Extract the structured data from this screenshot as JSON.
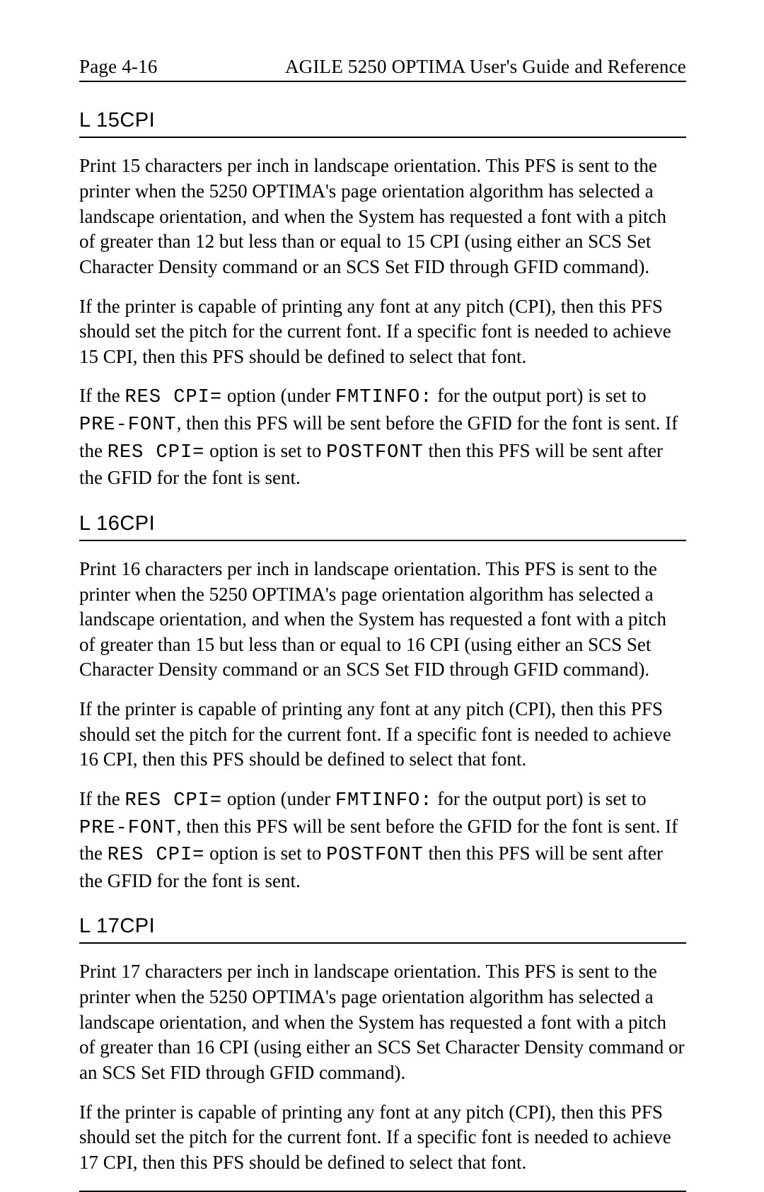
{
  "header": {
    "page_label": "Page 4-16",
    "doc_title": "AGILE 5250 OPTIMA User's Guide and Reference"
  },
  "codes": {
    "res_cpi": "RES CPI=",
    "fmtinfo": "FMTINFO:",
    "pre_font": "PRE-FONT",
    "postfont": "POSTFONT"
  },
  "sections": [
    {
      "heading": "L 15CPI",
      "p1": "Print 15 characters per inch in landscape orientation. This PFS is sent to the printer when the 5250 OPTIMA's page orientation algorithm has selected a landscape orientation, and when the System  has requested a font with a pitch of greater than 12 but less than or equal to 15 CPI (using either an SCS Set Character Density command or an SCS Set FID through GFID command).",
      "p2": "If the printer is capable of printing any font at any pitch (CPI), then this PFS should set the pitch for the current font. If a specific font is needed to achieve 15 CPI, then this PFS should be defined to select that font.",
      "p3a": "If the ",
      "p3b": " option (under ",
      "p3c": " for the output port) is set to ",
      "p3d": ", then this PFS will be sent before the GFID for the font is sent. If the ",
      "p3e": " option is set to ",
      "p3f": " then this PFS will be sent after the GFID for the font is sent."
    },
    {
      "heading": "L 16CPI",
      "p1": "Print 16 characters per inch in landscape orientation. This PFS is sent to the printer when the 5250 OPTIMA's page orientation algorithm has selected a landscape orientation, and when the System  has requested a font with a pitch of greater than 15 but less than or equal to 16 CPI (using either an SCS Set Character Density command or an SCS Set FID through GFID command).",
      "p2": "If the printer is capable of printing any font at any pitch (CPI), then this PFS should set the pitch for the current font. If a specific font is needed to achieve 16 CPI, then this PFS should be defined to select that font.",
      "p3a": "If the ",
      "p3b": " option (under ",
      "p3c": " for the output port) is set to ",
      "p3d": ", then this PFS will be sent before the GFID for the font is sent. If the ",
      "p3e": " option is set to ",
      "p3f": " then this PFS will be sent after the GFID for the font is sent."
    },
    {
      "heading": "L 17CPI",
      "p1": "Print 17 characters per inch in landscape orientation. This PFS is sent to the printer when the 5250 OPTIMA's page orientation algorithm has selected a landscape orientation, and when the System  has requested a font with a pitch of greater than 16 CPI (using either an SCS Set Character Density command or an SCS Set FID through GFID command).",
      "p2": "If the printer is capable of printing any font at any pitch (CPI), then this PFS should set the pitch for the current font. If a specific font is needed to achieve 17 CPI, then this PFS should be defined to select that font."
    }
  ]
}
